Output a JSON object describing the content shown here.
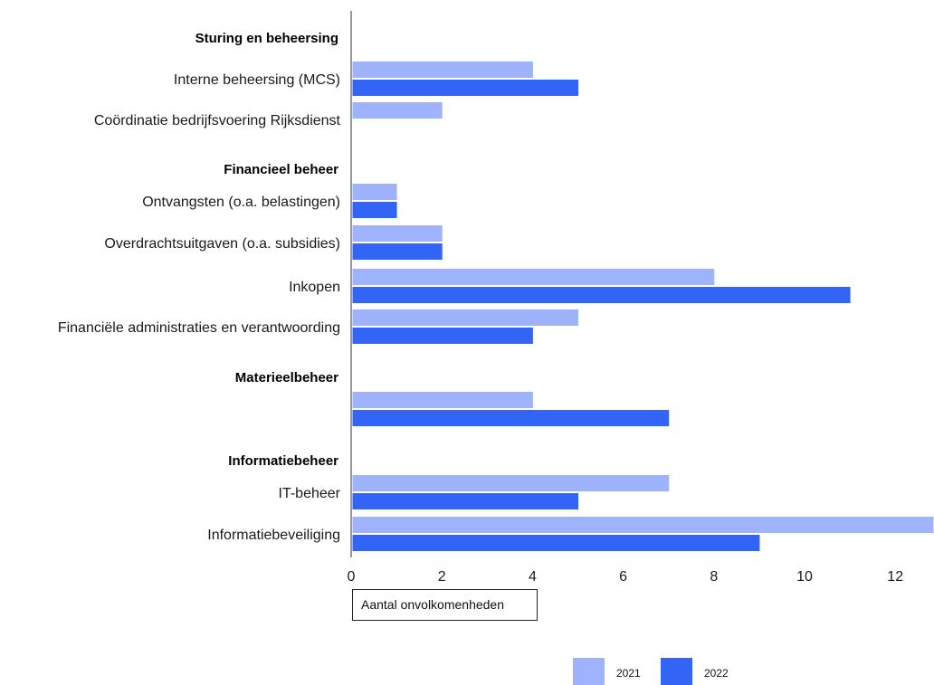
{
  "chart_data": {
    "type": "bar",
    "orientation": "horizontal",
    "title": "",
    "xlabel": "Aantal onvolkomenheden",
    "ylabel": "",
    "xlim": [
      0,
      12.85
    ],
    "xticks": [
      0,
      2,
      4,
      6,
      8,
      10,
      12
    ],
    "grid": false,
    "legend_position": "bottom-right",
    "colors": {
      "2021": "#9eb3fb",
      "2022": "#3264f5"
    },
    "series": [
      {
        "name": "2021"
      },
      {
        "name": "2022"
      }
    ],
    "rows": [
      {
        "kind": "group",
        "label": "Sturing en beheersing"
      },
      {
        "kind": "item",
        "label": "Interne beheersing (MCS)",
        "values": [
          4,
          5
        ]
      },
      {
        "kind": "item",
        "label": "Coördinatie bedrijfsvoering Rijksdienst",
        "values": [
          2,
          null
        ]
      },
      {
        "kind": "group",
        "label": "Financieel beheer"
      },
      {
        "kind": "item",
        "label": "Ontvangsten (o.a. belastingen)",
        "values": [
          1,
          1
        ]
      },
      {
        "kind": "item",
        "label": "Overdrachtsuitgaven (o.a. subsidies)",
        "values": [
          2,
          2
        ]
      },
      {
        "kind": "item",
        "label": "Inkopen",
        "values": [
          8,
          11
        ]
      },
      {
        "kind": "item",
        "label": "Financiële administraties en verantwoording",
        "values": [
          5,
          4
        ]
      },
      {
        "kind": "group",
        "label": "Materieelbeheer"
      },
      {
        "kind": "item",
        "label": "",
        "values": [
          4,
          7
        ]
      },
      {
        "kind": "group",
        "label": "Informatiebeheer"
      },
      {
        "kind": "item",
        "label": "IT-beheer",
        "values": [
          7,
          5
        ]
      },
      {
        "kind": "item",
        "label": "Informatiebeveiliging",
        "values": [
          13,
          9
        ]
      }
    ]
  }
}
